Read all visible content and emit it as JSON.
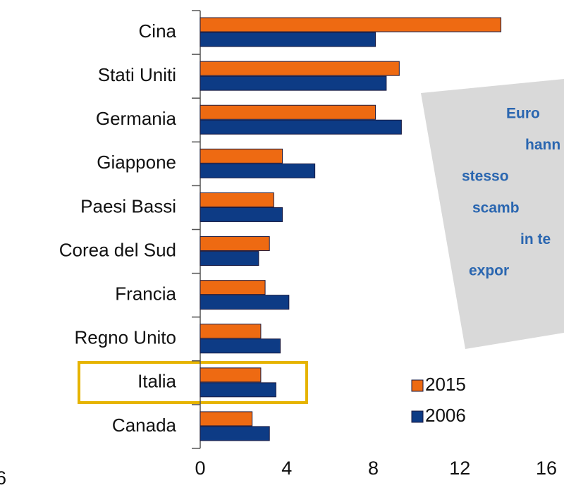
{
  "chart_data": {
    "type": "hbar",
    "categories": [
      "Cina",
      "Stati Uniti",
      "Germania",
      "Giappone",
      "Paesi Bassi",
      "Corea del Sud",
      "Francia",
      "Regno Unito",
      "Italia",
      "Canada"
    ],
    "series": [
      {
        "name": "2015",
        "color": "#ee6a12",
        "values": [
          13.9,
          9.2,
          8.1,
          3.8,
          3.4,
          3.2,
          3.0,
          2.8,
          2.8,
          2.4
        ]
      },
      {
        "name": "2006",
        "color": "#0d3b85",
        "values": [
          8.1,
          8.6,
          9.3,
          5.3,
          3.8,
          2.7,
          4.1,
          3.7,
          3.5,
          3.2
        ]
      }
    ],
    "xlim": [
      0,
      16
    ],
    "xticks": [
      0,
      4,
      8,
      12,
      16
    ],
    "annotation": [
      "Euro",
      "hann",
      "stesso",
      "scamb",
      "in te",
      "expor"
    ],
    "footnote": "6"
  }
}
